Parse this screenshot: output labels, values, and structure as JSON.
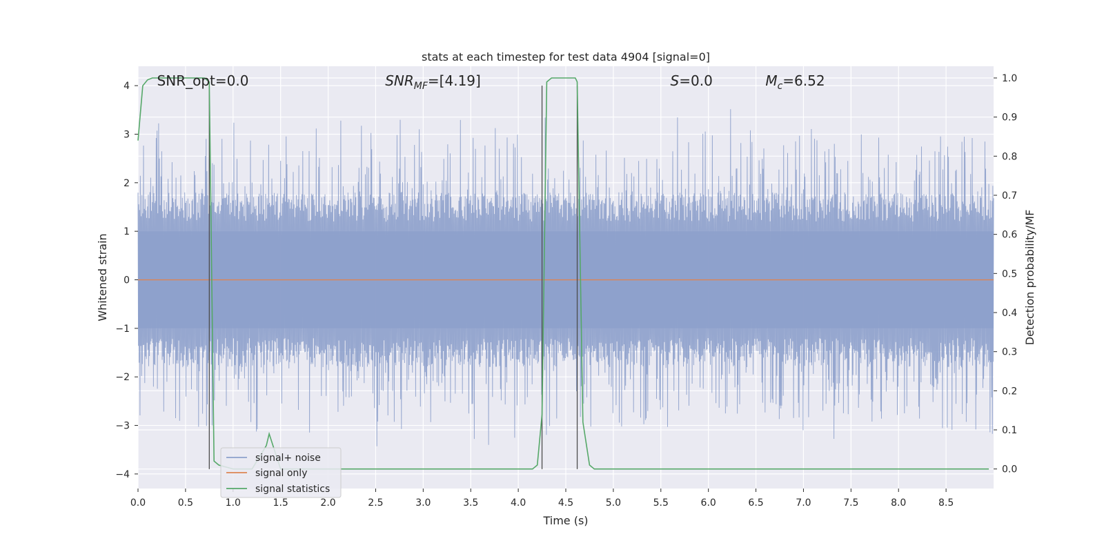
{
  "chart_data": {
    "type": "line",
    "title": "stats at each timestep for test data 4904 [signal=0]",
    "xlabel": "Time (s)",
    "ylabel": "Whitened strain",
    "ylabel_right": "Detection probability/MF",
    "xlim": [
      0.0,
      9.0
    ],
    "ylim": [
      -4.3,
      4.4
    ],
    "ylim_right": [
      -0.05,
      1.03
    ],
    "x_ticks": [
      "0.0",
      "0.5",
      "1.0",
      "1.5",
      "2.0",
      "2.5",
      "3.0",
      "3.5",
      "4.0",
      "4.5",
      "5.0",
      "5.5",
      "6.0",
      "6.5",
      "7.0",
      "7.5",
      "8.0",
      "8.5"
    ],
    "y_ticks_left": [
      "4",
      "3",
      "2",
      "1",
      "0",
      "−1",
      "−2",
      "−3",
      "−4"
    ],
    "y_ticks_right": [
      "1.0",
      "0.9",
      "0.8",
      "0.7",
      "0.6",
      "0.5",
      "0.4",
      "0.3",
      "0.2",
      "0.1",
      "0.0"
    ],
    "grid": true,
    "legend_position": "lower-left",
    "annotations": [
      {
        "text": "SNR_opt=0.0",
        "x": 0.2,
        "y": 4.1
      },
      {
        "text": "SNR",
        "sub": "MF",
        "suffix": "=[4.19]",
        "x": 2.6,
        "y": 4.1
      },
      {
        "text": "S",
        "suffix": "=0.0",
        "x": 5.6,
        "y": 4.1
      },
      {
        "text": "M",
        "sub": "c",
        "suffix": "=6.52",
        "x": 6.6,
        "y": 4.1
      }
    ],
    "vertical_lines_x": [
      0.75,
      4.25,
      4.62
    ],
    "series": [
      {
        "name": "signal+ noise",
        "color": "#8da0cb",
        "envelope": "noise-band approx ±1.5 to ±4.0 whitened strain",
        "sample_rate": 240
      },
      {
        "name": "signal only",
        "color": "#dd8452",
        "values": "constant 0.0"
      },
      {
        "name": "signal statistics",
        "color": "#55a868",
        "axis": "right",
        "x": [
          0.0,
          0.05,
          0.1,
          0.15,
          0.3,
          0.5,
          0.6,
          0.7,
          0.75,
          0.8,
          0.85,
          1.0,
          1.2,
          1.35,
          1.38,
          1.42,
          1.5,
          2.0,
          3.0,
          4.0,
          4.15,
          4.2,
          4.25,
          4.3,
          4.35,
          4.5,
          4.6,
          4.62,
          4.68,
          4.75,
          4.8,
          5.0,
          6.0,
          7.0,
          8.0,
          8.95
        ],
        "y": [
          0.84,
          0.98,
          0.995,
          1.0,
          1.0,
          1.0,
          1.0,
          1.0,
          0.99,
          0.02,
          0.01,
          0.0,
          0.0,
          0.06,
          0.09,
          0.06,
          0.0,
          0.0,
          0.0,
          0.0,
          0.0,
          0.01,
          0.14,
          0.99,
          1.0,
          1.0,
          1.0,
          0.99,
          0.12,
          0.01,
          0.0,
          0.0,
          0.0,
          0.0,
          0.0,
          0.0
        ]
      }
    ]
  },
  "colors": {
    "axes_bg": "#eaeaf2",
    "grid": "#ffffff",
    "noise": "#8da0cb",
    "signal": "#dd8452",
    "stats": "#55a868",
    "vline": "#4c4c4c"
  }
}
